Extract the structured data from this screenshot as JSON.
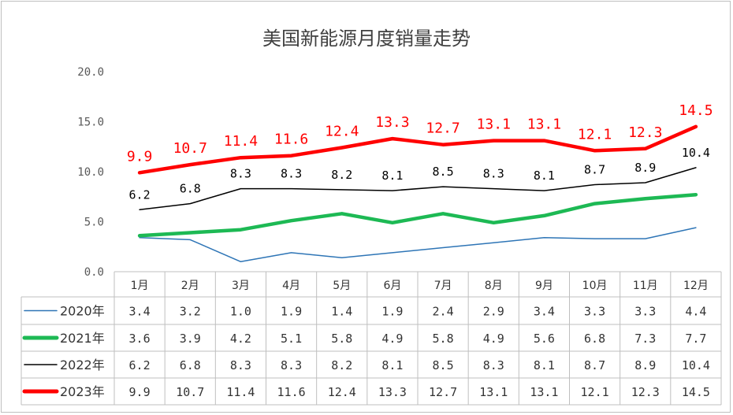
{
  "chart_data": {
    "type": "line",
    "title": "美国新能源月度销量走势",
    "categories": [
      "1月",
      "2月",
      "3月",
      "4月",
      "5月",
      "6月",
      "7月",
      "8月",
      "9月",
      "10月",
      "11月",
      "12月"
    ],
    "ylim": [
      0,
      20
    ],
    "yticks": [
      "0.0",
      "5.0",
      "10.0",
      "15.0",
      "20.0"
    ],
    "grid": false,
    "legend": "data-table",
    "series": [
      {
        "name": "2020年",
        "color": "#2e75b6",
        "values": [
          3.4,
          3.2,
          1.0,
          1.9,
          1.4,
          1.9,
          2.4,
          2.9,
          3.4,
          3.3,
          3.3,
          4.4
        ],
        "display": [
          "3.4",
          "3.2",
          "1.0",
          "1.9",
          "1.4",
          "1.9",
          "2.4",
          "2.9",
          "3.4",
          "3.3",
          "3.3",
          "4.4"
        ]
      },
      {
        "name": "2021年",
        "color": "#1db954",
        "values": [
          3.6,
          3.9,
          4.2,
          5.1,
          5.8,
          4.9,
          5.8,
          4.9,
          5.6,
          6.8,
          7.3,
          7.7
        ],
        "display": [
          "3.6",
          "3.9",
          "4.2",
          "5.1",
          "5.8",
          "4.9",
          "5.8",
          "4.9",
          "5.6",
          "6.8",
          "7.3",
          "7.7"
        ]
      },
      {
        "name": "2022年",
        "color": "#000000",
        "values": [
          6.2,
          6.8,
          8.3,
          8.3,
          8.2,
          8.1,
          8.5,
          8.3,
          8.1,
          8.7,
          8.9,
          10.4
        ],
        "display": [
          "6.2",
          "6.8",
          "8.3",
          "8.3",
          "8.2",
          "8.1",
          "8.5",
          "8.3",
          "8.1",
          "8.7",
          "8.9",
          "10.4"
        ]
      },
      {
        "name": "2023年",
        "color": "#ff0000",
        "values": [
          9.9,
          10.7,
          11.4,
          11.6,
          12.4,
          13.3,
          12.7,
          13.1,
          13.1,
          12.1,
          12.3,
          14.5
        ],
        "display": [
          "9.9",
          "10.7",
          "11.4",
          "11.6",
          "12.4",
          "13.3",
          "12.7",
          "13.1",
          "13.1",
          "12.1",
          "12.3",
          "14.5"
        ]
      }
    ],
    "data_labels": [
      "2022年",
      "2023年"
    ]
  }
}
